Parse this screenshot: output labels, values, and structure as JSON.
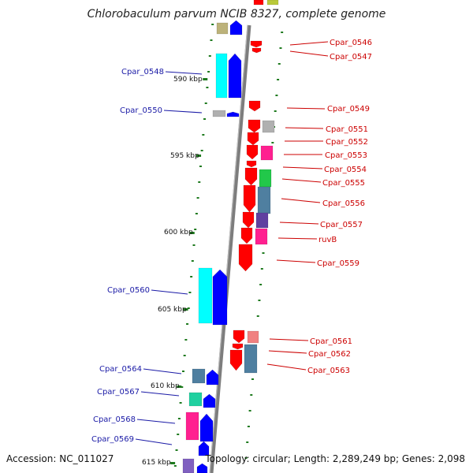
{
  "title": "Chlorobaculum parvum NCIB 8327, complete genome",
  "accession": "Accession: NC_011027",
  "topology": "Topology: circular; Length: 2,289,249 bp; Genes: 2,098",
  "positions": [
    "590 kbp",
    "595 kbp",
    "600 kbp",
    "605 kbp",
    "610 kbp",
    "615 kbp"
  ],
  "left_labels": [
    "Cpar_0548",
    "Cpar_0550",
    "Cpar_0560",
    "Cpar_0564",
    "Cpar_0567",
    "Cpar_0568",
    "Cpar_0569"
  ],
  "right_labels": [
    "Cpar_0546",
    "Cpar_0547",
    "Cpar_0549",
    "Cpar_0551",
    "Cpar_0552",
    "Cpar_0553",
    "Cpar_0554",
    "Cpar_0555",
    "Cpar_0556",
    "Cpar_0557",
    "ruvB",
    "Cpar_0559",
    "Cpar_0561",
    "Cpar_0562",
    "Cpar_0563"
  ],
  "colors": {
    "forward_label": "#1a1aa6",
    "reverse_label": "#cc0000",
    "backbone": "#8c8c8c",
    "tick": "#1e7a1e"
  }
}
